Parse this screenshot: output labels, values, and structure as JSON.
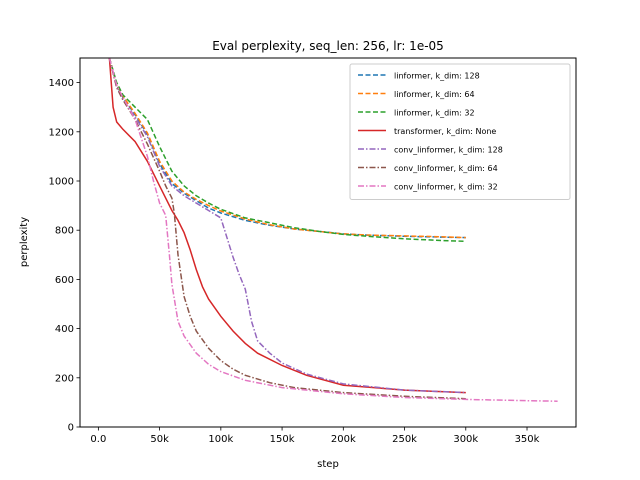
{
  "chart_data": {
    "type": "line",
    "title": "Eval perplexity, seq_len: 256, lr: 1e-05",
    "xlabel": "step",
    "ylabel": "perplexity",
    "xlim": [
      -15000,
      390000
    ],
    "ylim": [
      0,
      1500
    ],
    "xticks": [
      0,
      50000,
      100000,
      150000,
      200000,
      250000,
      300000,
      350000
    ],
    "xtick_labels": [
      "0.0",
      "50k",
      "100k",
      "150k",
      "200k",
      "250k",
      "300k",
      "350k"
    ],
    "yticks": [
      0,
      200,
      400,
      600,
      800,
      1000,
      1200,
      1400
    ],
    "ytick_labels": [
      "0",
      "200",
      "400",
      "600",
      "800",
      "1000",
      "1200",
      "1400"
    ],
    "grid": false,
    "legend_position": "top-right",
    "series": [
      {
        "name": "linformer, k_dim: 128",
        "color": "#1f77b4",
        "dash": "dashed",
        "x": [
          9000,
          15000,
          20000,
          30000,
          40000,
          50000,
          60000,
          70000,
          80000,
          90000,
          100000,
          120000,
          140000,
          160000,
          180000,
          200000,
          220000,
          250000,
          280000,
          300000
        ],
        "y": [
          1500,
          1390,
          1340,
          1270,
          1190,
          1070,
          990,
          950,
          920,
          890,
          870,
          840,
          820,
          805,
          795,
          785,
          780,
          775,
          772,
          770
        ]
      },
      {
        "name": "linformer, k_dim: 64",
        "color": "#ff7f0e",
        "dash": "dashed",
        "x": [
          9000,
          15000,
          20000,
          30000,
          40000,
          50000,
          60000,
          70000,
          80000,
          90000,
          100000,
          120000,
          140000,
          160000,
          180000,
          200000,
          220000,
          250000,
          280000,
          300000
        ],
        "y": [
          1500,
          1395,
          1345,
          1275,
          1195,
          1080,
          1000,
          955,
          925,
          900,
          878,
          845,
          822,
          805,
          795,
          785,
          780,
          777,
          773,
          770
        ]
      },
      {
        "name": "linformer, k_dim: 32",
        "color": "#2ca02c",
        "dash": "dashed",
        "x": [
          9000,
          15000,
          20000,
          30000,
          40000,
          50000,
          60000,
          70000,
          80000,
          90000,
          100000,
          120000,
          140000,
          160000,
          180000,
          200000,
          220000,
          250000,
          280000,
          300000
        ],
        "y": [
          1500,
          1400,
          1350,
          1300,
          1250,
          1140,
          1040,
          980,
          940,
          910,
          885,
          850,
          830,
          810,
          795,
          783,
          775,
          765,
          758,
          755
        ]
      },
      {
        "name": "transformer, k_dim: None",
        "color": "#d62728",
        "dash": "solid",
        "x": [
          9000,
          12000,
          15000,
          20000,
          30000,
          40000,
          50000,
          60000,
          65000,
          70000,
          75000,
          80000,
          85000,
          90000,
          100000,
          110000,
          120000,
          130000,
          150000,
          170000,
          200000,
          250000,
          300000
        ],
        "y": [
          1500,
          1300,
          1240,
          1210,
          1160,
          1080,
          980,
          880,
          840,
          790,
          720,
          640,
          570,
          520,
          450,
          390,
          340,
          300,
          250,
          210,
          170,
          150,
          140
        ]
      },
      {
        "name": "conv_linformer, k_dim: 128",
        "color": "#9467bd",
        "dash": "dashdot",
        "x": [
          9000,
          15000,
          20000,
          30000,
          40000,
          50000,
          60000,
          70000,
          80000,
          90000,
          100000,
          110000,
          115000,
          120000,
          125000,
          130000,
          140000,
          150000,
          170000,
          200000,
          250000,
          300000
        ],
        "y": [
          1500,
          1380,
          1330,
          1260,
          1180,
          1060,
          980,
          940,
          910,
          880,
          850,
          690,
          620,
          560,
          430,
          350,
          300,
          260,
          215,
          175,
          150,
          140
        ]
      },
      {
        "name": "conv_linformer, k_dim: 64",
        "color": "#8c564b",
        "dash": "dashdot",
        "x": [
          9000,
          15000,
          20000,
          30000,
          40000,
          50000,
          55000,
          60000,
          62000,
          65000,
          70000,
          75000,
          80000,
          90000,
          100000,
          110000,
          120000,
          140000,
          160000,
          200000,
          250000,
          300000
        ],
        "y": [
          1500,
          1380,
          1330,
          1250,
          1150,
          1040,
          980,
          930,
          870,
          700,
          530,
          450,
          390,
          320,
          270,
          235,
          210,
          180,
          160,
          140,
          125,
          115
        ]
      },
      {
        "name": "conv_linformer, k_dim: 32",
        "color": "#e377c2",
        "dash": "dashdot",
        "x": [
          9000,
          15000,
          20000,
          30000,
          40000,
          45000,
          50000,
          55000,
          58000,
          60000,
          65000,
          70000,
          80000,
          90000,
          100000,
          120000,
          150000,
          200000,
          250000,
          300000,
          350000,
          375000
        ],
        "y": [
          1500,
          1390,
          1340,
          1250,
          1100,
          1000,
          910,
          860,
          700,
          580,
          430,
          370,
          300,
          255,
          225,
          190,
          160,
          135,
          120,
          112,
          107,
          105
        ]
      }
    ]
  }
}
